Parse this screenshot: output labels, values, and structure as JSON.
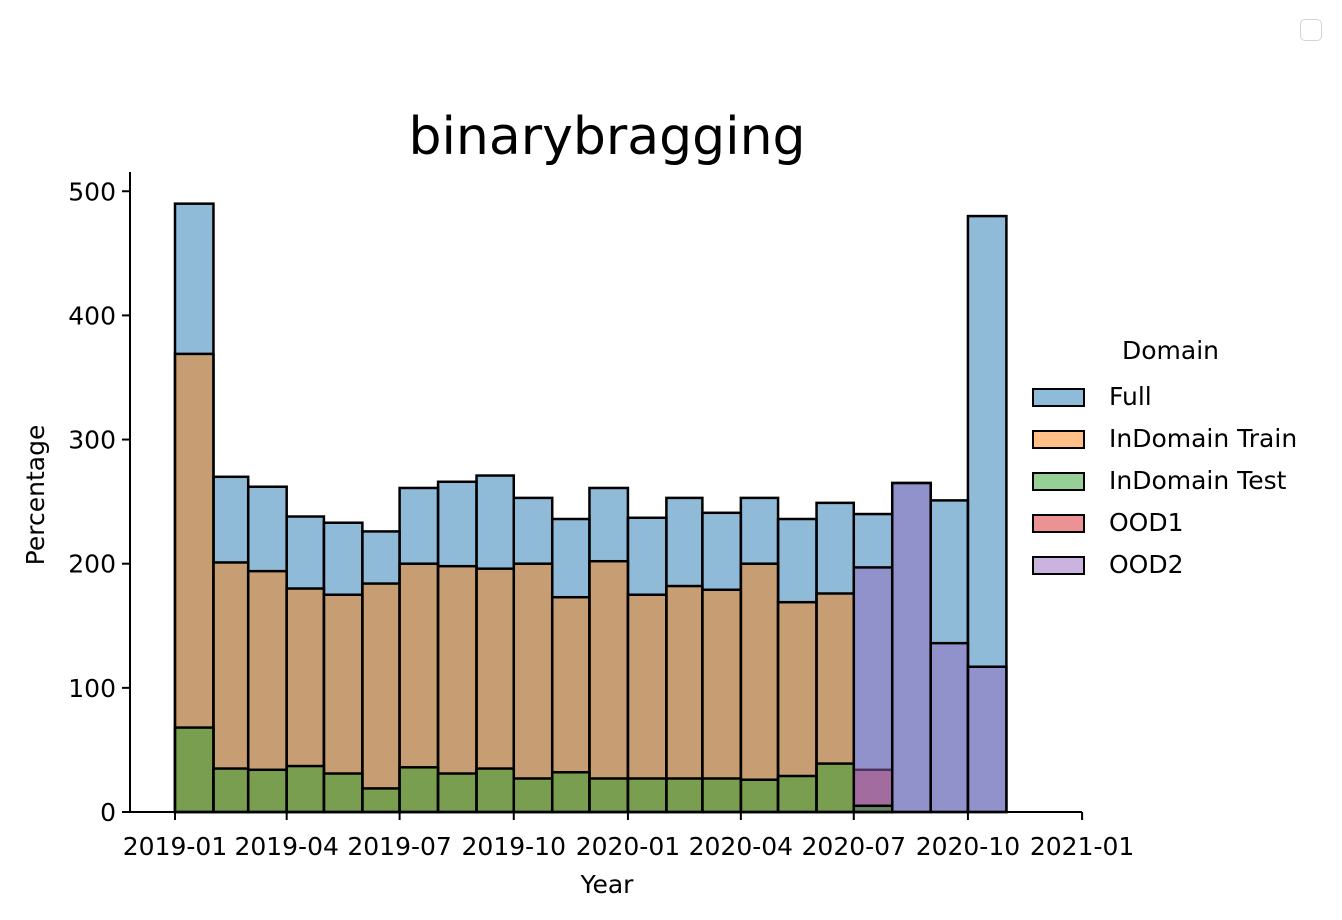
{
  "chart_data": {
    "type": "bar",
    "title": "binarybragging",
    "xlabel": "Year",
    "ylabel": "Percentage",
    "ylim": [
      0,
      520
    ],
    "yticks": [
      0,
      100,
      200,
      300,
      400,
      500
    ],
    "xticks": [
      "2019-01",
      "2019-04",
      "2019-07",
      "2019-10",
      "2020-01",
      "2020-04",
      "2020-07",
      "2020-10",
      "2021-01"
    ],
    "bins": [
      "2019-01",
      "2019-02",
      "2019-03",
      "2019-04",
      "2019-05",
      "2019-06",
      "2019-07",
      "2019-08",
      "2019-09",
      "2019-10",
      "2019-11",
      "2019-12",
      "2020-01",
      "2020-02",
      "2020-03",
      "2020-04",
      "2020-05",
      "2020-06",
      "2020-07",
      "2020-08",
      "2020-09",
      "2020-10",
      "2020-11"
    ],
    "bin_end": "2020-12",
    "legend_title": "Domain",
    "legend_position": "right",
    "series": [
      {
        "name": "Full",
        "color": "#1f77b4",
        "values": [
          490,
          270,
          262,
          238,
          233,
          226,
          261,
          266,
          271,
          253,
          236,
          261,
          237,
          253,
          241,
          253,
          236,
          249,
          240,
          265,
          251,
          480,
          0
        ]
      },
      {
        "name": "InDomain Train",
        "color": "#ff7f0e",
        "values": [
          369,
          201,
          194,
          180,
          175,
          184,
          200,
          198,
          196,
          200,
          173,
          202,
          175,
          182,
          179,
          200,
          169,
          176,
          0,
          0,
          0,
          0,
          0
        ]
      },
      {
        "name": "InDomain Test",
        "color": "#2ca02c",
        "values": [
          68,
          35,
          34,
          37,
          31,
          19,
          36,
          31,
          35,
          27,
          32,
          27,
          27,
          27,
          27,
          26,
          29,
          39,
          0,
          0,
          0,
          0,
          0
        ]
      },
      {
        "name": "OOD1",
        "color": "#d62728",
        "values": [
          0,
          0,
          0,
          0,
          0,
          0,
          0,
          0,
          0,
          0,
          0,
          0,
          0,
          0,
          0,
          0,
          0,
          0,
          34,
          0,
          0,
          0,
          0
        ]
      },
      {
        "name": "OOD2",
        "color": "#9467bd",
        "values": [
          0,
          0,
          0,
          0,
          0,
          0,
          0,
          0,
          0,
          0,
          0,
          0,
          0,
          0,
          0,
          0,
          0,
          0,
          197,
          265,
          136,
          0,
          0
        ]
      }
    ],
    "extra_overlays": [
      {
        "series": "InDomain Test",
        "bin": "2020-07",
        "value": 5
      },
      {
        "series": "OOD2",
        "bin": "2020-10",
        "value": 117
      }
    ],
    "grid": false
  }
}
